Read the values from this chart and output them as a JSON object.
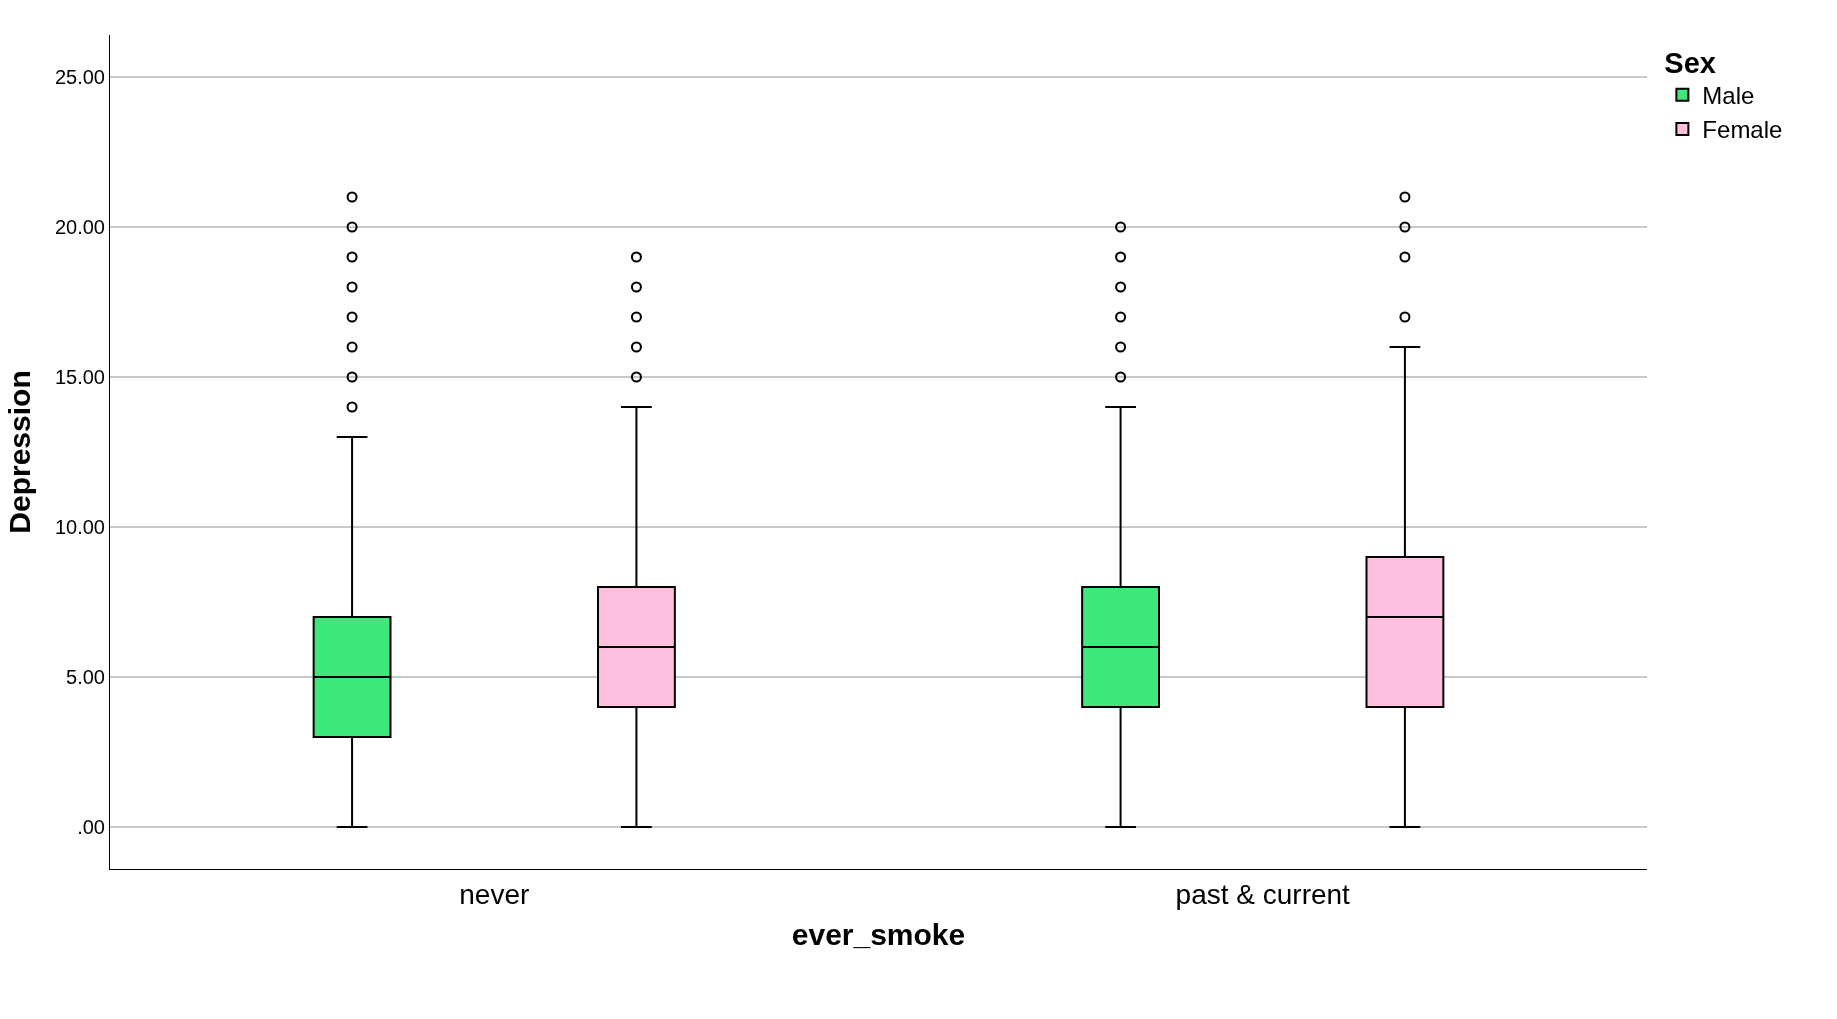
{
  "chart_data": {
    "type": "box",
    "xlabel": "ever_smoke",
    "ylabel": "Depression",
    "legend_title": "Sex",
    "categories": [
      "never",
      "past & current"
    ],
    "series": [
      {
        "name": "Male",
        "color": "#3ee87a",
        "boxes": [
          {
            "low": 0,
            "q1": 3,
            "median": 5,
            "q3": 7,
            "high": 13,
            "outliers": [
              14,
              15,
              16,
              17,
              18,
              19,
              20,
              21
            ]
          },
          {
            "low": 0,
            "q1": 4,
            "median": 6,
            "q3": 8,
            "high": 14,
            "outliers": [
              15,
              16,
              17,
              18,
              19,
              20
            ]
          }
        ]
      },
      {
        "name": "Female",
        "color": "#ffc0df",
        "boxes": [
          {
            "low": 0,
            "q1": 4,
            "median": 6,
            "q3": 8,
            "high": 14,
            "outliers": [
              15,
              16,
              17,
              18,
              19
            ]
          },
          {
            "low": 0,
            "q1": 4,
            "median": 7,
            "q3": 9,
            "high": 16,
            "outliers": [
              17,
              19,
              20,
              21
            ]
          }
        ]
      }
    ],
    "ylim": [
      -1.4,
      26.4
    ],
    "yticks": [
      {
        "value": 0,
        "label": ".00"
      },
      {
        "value": 5,
        "label": "5.00"
      },
      {
        "value": 10,
        "label": "10.00"
      },
      {
        "value": 15,
        "label": "15.00"
      },
      {
        "value": 20,
        "label": "20.00"
      },
      {
        "value": 25,
        "label": "25.00"
      }
    ],
    "grid": "y",
    "legend": "top right"
  }
}
